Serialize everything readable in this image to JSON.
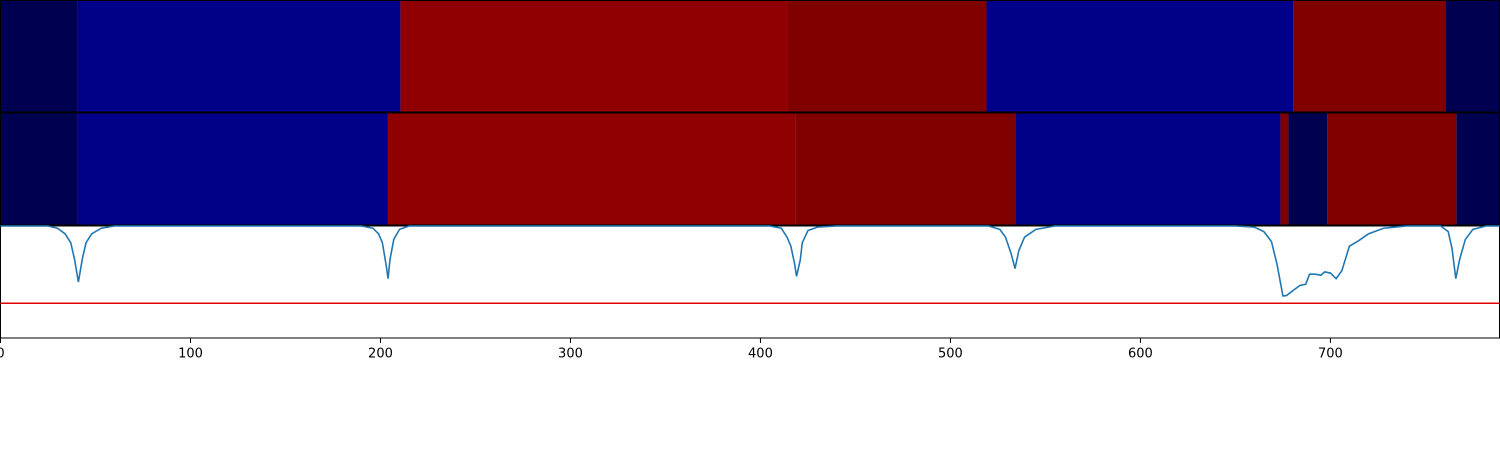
{
  "chart_data": [
    {
      "type": "segments",
      "xlim": [
        0,
        789
      ],
      "edges": [
        0,
        40.5,
        210.5,
        414,
        519,
        680.5,
        760.5,
        789
      ],
      "colors": [
        "#000050",
        "#000088",
        "#900000",
        "#800000",
        "#000088",
        "#800000",
        "#000050"
      ]
    },
    {
      "type": "segments",
      "xlim": [
        0,
        789
      ],
      "edges": [
        0,
        40.5,
        203.7,
        418.4,
        534.2,
        673.7,
        677.9,
        698.4,
        766.3,
        789
      ],
      "colors": [
        "#000050",
        "#000088",
        "#900000",
        "#800000",
        "#000088",
        "#800000",
        "#000050",
        "#800000",
        "#000050"
      ]
    },
    {
      "type": "line",
      "xlim": [
        0,
        789
      ],
      "ylim": [
        0,
        1
      ],
      "color": "#1f77b4",
      "threshold": 0.31,
      "threshold_color": "#e00000",
      "xticks": [
        0,
        100,
        200,
        300,
        400,
        500,
        600,
        700
      ],
      "x": [
        0,
        25,
        30,
        34,
        37,
        39,
        41,
        43,
        45,
        48,
        53,
        60,
        190,
        196,
        199,
        201,
        203,
        204,
        205,
        207,
        210,
        215,
        405,
        411,
        414,
        416,
        418,
        419,
        421,
        422,
        425,
        430,
        440,
        520,
        526,
        529,
        532,
        534,
        536,
        539,
        545,
        555,
        650,
        660,
        665,
        669,
        672,
        675,
        677,
        680,
        684,
        687,
        689,
        692,
        695,
        697,
        700,
        703,
        706,
        710,
        715,
        720,
        728,
        740,
        758,
        762,
        764,
        766,
        768,
        771,
        775,
        782,
        789
      ],
      "values": [
        1,
        1,
        0.98,
        0.93,
        0.85,
        0.7,
        0.5,
        0.7,
        0.85,
        0.93,
        0.98,
        1,
        1,
        0.98,
        0.93,
        0.85,
        0.65,
        0.53,
        0.7,
        0.88,
        0.97,
        1,
        1,
        0.98,
        0.9,
        0.82,
        0.66,
        0.55,
        0.7,
        0.85,
        0.96,
        0.99,
        1,
        1,
        0.97,
        0.9,
        0.75,
        0.62,
        0.78,
        0.9,
        0.97,
        1,
        1,
        0.99,
        0.95,
        0.86,
        0.65,
        0.375,
        0.38,
        0.42,
        0.47,
        0.48,
        0.57,
        0.57,
        0.56,
        0.59,
        0.58,
        0.53,
        0.6,
        0.82,
        0.87,
        0.93,
        0.98,
        1,
        1,
        0.95,
        0.8,
        0.53,
        0.7,
        0.88,
        0.97,
        1,
        1
      ]
    }
  ]
}
